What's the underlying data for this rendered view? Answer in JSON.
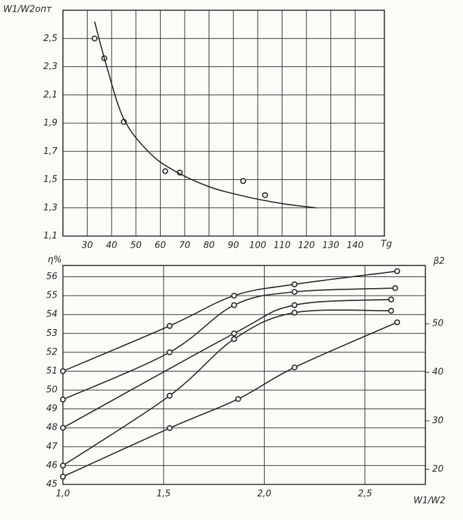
{
  "chart_data": [
    {
      "type": "line",
      "ylabel": "W1/W2опт",
      "xlabel": "Tg",
      "xlim": [
        20,
        152
      ],
      "xticks": [
        30,
        40,
        50,
        60,
        70,
        80,
        90,
        100,
        110,
        120,
        130,
        140
      ],
      "ylim": [
        1.1,
        2.7
      ],
      "yticks": [
        {
          "value": 1.1,
          "label": "1,1"
        },
        {
          "value": 1.3,
          "label": "1,3"
        },
        {
          "value": 1.5,
          "label": "1,5"
        },
        {
          "value": 1.7,
          "label": "1,7"
        },
        {
          "value": 1.9,
          "label": "1,9"
        },
        {
          "value": 2.1,
          "label": "2,1"
        },
        {
          "value": 2.3,
          "label": "2,3"
        },
        {
          "value": 2.5,
          "label": "2,5"
        }
      ],
      "grid": true,
      "series": [
        {
          "style": "markers",
          "color": "#222",
          "x": [
            33,
            37,
            45,
            62,
            68,
            94,
            103
          ],
          "values": [
            2.5,
            2.36,
            1.91,
            1.56,
            1.55,
            1.49,
            1.39
          ]
        },
        {
          "style": "line",
          "color": "#222",
          "x": [
            33,
            38,
            45,
            55,
            65,
            80,
            95,
            110,
            124
          ],
          "values": [
            2.62,
            2.3,
            1.93,
            1.7,
            1.57,
            1.45,
            1.38,
            1.33,
            1.3
          ]
        }
      ]
    },
    {
      "type": "line",
      "ylabel": "η%",
      "y2label": "β2",
      "xlabel": "W1/W2",
      "xlim": [
        1.0,
        2.8
      ],
      "xticks": [
        {
          "value": 1.0,
          "label": "1,0"
        },
        {
          "value": 1.5,
          "label": "1,5"
        },
        {
          "value": 2.0,
          "label": "2,0"
        },
        {
          "value": 2.5,
          "label": "2,5"
        }
      ],
      "ylim": [
        45,
        56.6
      ],
      "yticks": [
        45,
        46,
        47,
        48,
        49,
        50,
        51,
        52,
        53,
        54,
        55,
        56
      ],
      "y2lim": [
        16.9,
        62
      ],
      "y2ticks": [
        20,
        30,
        40,
        50
      ],
      "grid": true,
      "series": [
        {
          "style": "markers+line",
          "color": "#222",
          "x": [
            1.0,
            1.53,
            1.85,
            2.15,
            2.66
          ],
          "values": [
            51,
            53.4,
            55,
            55.6,
            56.3
          ]
        },
        {
          "style": "markers+line",
          "color": "#222",
          "x": [
            1.0,
            1.53,
            1.85,
            2.15,
            2.65
          ],
          "values": [
            49.5,
            52,
            54.5,
            55.2,
            55.4
          ]
        },
        {
          "style": "markers+line",
          "color": "#222",
          "x": [
            1.0,
            1.85,
            2.15,
            2.63
          ],
          "values": [
            48,
            53,
            54.5,
            54.8
          ]
        },
        {
          "style": "markers+line",
          "color": "#222",
          "x": [
            1.0,
            1.53,
            1.85,
            2.15,
            2.63
          ],
          "values": [
            46,
            49.7,
            52.7,
            54.1,
            54.2
          ]
        },
        {
          "style": "markers+line",
          "color": "#222",
          "axis": "y2",
          "x": [
            1.0,
            1.53,
            1.87,
            2.15,
            2.66
          ],
          "values": [
            18.5,
            28.5,
            34.5,
            41,
            50.3
          ]
        }
      ]
    }
  ]
}
